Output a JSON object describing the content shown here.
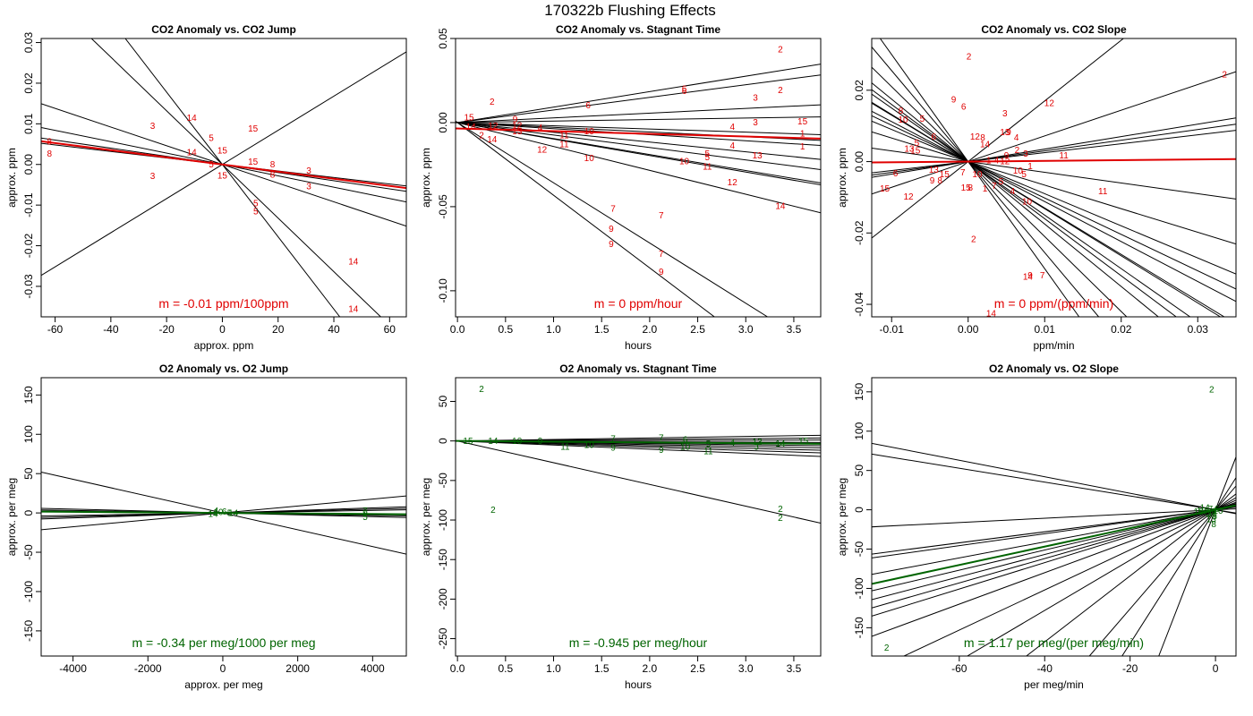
{
  "figure": {
    "title": "170322b   Flushing Effects"
  },
  "colors": {
    "co2": "#e00000",
    "o2": "#006400",
    "line": "#000000",
    "frame": "#000000"
  },
  "chart_data": [
    {
      "id": "co2-jump",
      "type": "scatter",
      "title": "CO2 Anomaly vs. CO2 Jump",
      "xlabel": "approx. ppm",
      "ylabel": "approx. ppm",
      "xlim": [
        -65.0,
        66.0
      ],
      "ylim": [
        -0.0375,
        0.031
      ],
      "xticks": [
        -60,
        -40,
        -20,
        0,
        20,
        40,
        60
      ],
      "yticks": [
        -0.03,
        -0.02,
        -0.01,
        0.0,
        0.01,
        0.02,
        0.03
      ],
      "ytick_labels": [
        "-0.03",
        "-0.02",
        "-0.01",
        "0.00",
        "0.01",
        "0.02",
        "0.03"
      ],
      "slope_label": "m = -0.01 ppm/100ppm",
      "fit_slope": -8.79e-05,
      "series_color": "co2",
      "lines": [
        -0.00066,
        -0.00089,
        0.00042,
        -0.00014,
        -0.0001,
        -0.00023,
        -8e-05
      ],
      "points": [
        {
          "label": "8",
          "x": -62,
          "y": 0.0057
        },
        {
          "label": "8",
          "x": -62,
          "y": 0.0027
        },
        {
          "label": "3",
          "x": -25,
          "y": 0.0095
        },
        {
          "label": "3",
          "x": -25,
          "y": -0.0028
        },
        {
          "label": "14",
          "x": -11,
          "y": 0.0115
        },
        {
          "label": "14",
          "x": -11,
          "y": 0.003
        },
        {
          "label": "5",
          "x": -4,
          "y": 0.0065
        },
        {
          "label": "5",
          "x": -4,
          "y": 0.0
        },
        {
          "label": "15",
          "x": 0,
          "y": 0.0035
        },
        {
          "label": "15",
          "x": 0,
          "y": -0.0027
        },
        {
          "label": "15",
          "x": 11,
          "y": 0.0089
        },
        {
          "label": "15",
          "x": 11,
          "y": 0.0007
        },
        {
          "label": "5",
          "x": 12,
          "y": -0.0095
        },
        {
          "label": "5",
          "x": 12,
          "y": -0.0115
        },
        {
          "label": "8",
          "x": 18,
          "y": 0.0
        },
        {
          "label": "8",
          "x": 18,
          "y": -0.0025
        },
        {
          "label": "3",
          "x": 31,
          "y": -0.0015
        },
        {
          "label": "3",
          "x": 31,
          "y": -0.0053
        },
        {
          "label": "14",
          "x": 47,
          "y": -0.0238
        },
        {
          "label": "14",
          "x": 47,
          "y": -0.0355
        }
      ]
    },
    {
      "id": "co2-time",
      "type": "scatter",
      "title": "CO2 Anomaly vs. Stagnant Time",
      "xlabel": "hours",
      "ylabel": "approx. ppm",
      "xlim": [
        -0.02,
        3.78
      ],
      "ylim": [
        -0.1155,
        0.05
      ],
      "xticks": [
        0.0,
        0.5,
        1.0,
        1.5,
        2.0,
        2.5,
        3.0,
        3.5
      ],
      "xtick_labels": [
        "0.0",
        "0.5",
        "1.0",
        "1.5",
        "2.0",
        "2.5",
        "3.0",
        "3.5"
      ],
      "yticks": [
        -0.1,
        -0.05,
        0.0,
        0.05
      ],
      "ytick_labels": [
        "-0.10",
        "-0.05",
        "0.00",
        "0.05"
      ],
      "slope_label": "m = 0 ppm/hour",
      "fit_slope": -0.0016,
      "fit_intercept": -0.0035,
      "series_color": "co2",
      "lines": [
        0.0092,
        0.0075,
        0.0028,
        0.0009,
        -0.0019,
        -0.0028,
        -0.0036,
        -0.0058,
        -0.0074,
        -0.0095,
        -0.0098,
        -0.0142,
        -0.0358,
        -0.0432
      ],
      "points": [
        {
          "label": "15",
          "x": 0.12,
          "y": 0.0032
        },
        {
          "label": "14",
          "x": 0.14,
          "y": -0.0025
        },
        {
          "label": "2",
          "x": 0.36,
          "y": 0.0125
        },
        {
          "label": "2",
          "x": 0.25,
          "y": -0.0075
        },
        {
          "label": "14",
          "x": 0.36,
          "y": -0.01
        },
        {
          "label": "12",
          "x": 0.37,
          "y": -0.002
        },
        {
          "label": "9",
          "x": 0.6,
          "y": 0.002
        },
        {
          "label": "12",
          "x": 0.62,
          "y": -0.0015
        },
        {
          "label": "13",
          "x": 0.62,
          "y": -0.005
        },
        {
          "label": "4",
          "x": 0.86,
          "y": -0.003
        },
        {
          "label": "12",
          "x": 0.88,
          "y": -0.016
        },
        {
          "label": "11",
          "x": 1.11,
          "y": -0.0075
        },
        {
          "label": "11",
          "x": 1.11,
          "y": -0.0128
        },
        {
          "label": "6",
          "x": 1.36,
          "y": 0.0103
        },
        {
          "label": "10",
          "x": 1.37,
          "y": -0.005
        },
        {
          "label": "10",
          "x": 1.37,
          "y": -0.021
        },
        {
          "label": "7",
          "x": 1.62,
          "y": -0.051
        },
        {
          "label": "9",
          "x": 1.6,
          "y": -0.063
        },
        {
          "label": "9",
          "x": 1.6,
          "y": -0.072
        },
        {
          "label": "7",
          "x": 2.12,
          "y": -0.055
        },
        {
          "label": "7",
          "x": 2.12,
          "y": -0.078
        },
        {
          "label": "9",
          "x": 2.12,
          "y": -0.0885
        },
        {
          "label": "10",
          "x": 2.36,
          "y": -0.023
        },
        {
          "label": "6",
          "x": 2.36,
          "y": 0.0188
        },
        {
          "label": "6",
          "x": 2.36,
          "y": 0.0203
        },
        {
          "label": "5",
          "x": 2.6,
          "y": -0.0185
        },
        {
          "label": "5",
          "x": 2.6,
          "y": -0.0205
        },
        {
          "label": "11",
          "x": 2.6,
          "y": -0.026
        },
        {
          "label": "12",
          "x": 2.86,
          "y": -0.0355
        },
        {
          "label": "4",
          "x": 2.86,
          "y": -0.0025
        },
        {
          "label": "4",
          "x": 2.86,
          "y": -0.0135
        },
        {
          "label": "3",
          "x": 3.1,
          "y": 0.0148
        },
        {
          "label": "3",
          "x": 3.1,
          "y": 0.0002
        },
        {
          "label": "13",
          "x": 3.12,
          "y": -0.0195
        },
        {
          "label": "2",
          "x": 3.36,
          "y": 0.0435
        },
        {
          "label": "2",
          "x": 3.36,
          "y": 0.0195
        },
        {
          "label": "14",
          "x": 3.36,
          "y": -0.0495
        },
        {
          "label": "15",
          "x": 3.59,
          "y": 0.0008
        },
        {
          "label": "1",
          "x": 3.59,
          "y": -0.0065
        },
        {
          "label": "1",
          "x": 3.59,
          "y": -0.014
        }
      ]
    },
    {
      "id": "co2-slope",
      "type": "scatter",
      "title": "CO2 Anomaly vs. CO2 Slope",
      "xlabel": "ppm/min",
      "ylabel": "approx. ppm",
      "xlim": [
        -0.0126,
        0.035
      ],
      "ylim": [
        -0.0435,
        0.0345
      ],
      "xticks": [
        -0.01,
        0.0,
        0.01,
        0.02,
        0.03
      ],
      "xtick_labels": [
        "-0.01",
        "0.00",
        "0.01",
        "0.02",
        "0.03"
      ],
      "yticks": [
        -0.04,
        -0.02,
        0.0,
        0.02
      ],
      "ytick_labels": [
        "-0.04",
        "-0.02",
        "0.00",
        "0.02"
      ],
      "slope_label": "m = 0 ppm/(ppm/min)",
      "fit_slope": 0.02,
      "fit_intercept": 0.0,
      "series_color": "co2",
      "lines": [
        -3.0,
        -1.75,
        -1.5,
        -1.3,
        -1.02,
        -0.66,
        1.7,
        0.72,
        0.35,
        0.3,
        0.25,
        -0.3,
        -0.9,
        -1.12,
        -1.32,
        -1.6,
        -2.1,
        -2.55
      ],
      "points": [
        {
          "label": "2",
          "x": 0.0001,
          "y": 0.0295
        },
        {
          "label": "2",
          "x": 0.0335,
          "y": 0.0245
        },
        {
          "label": "9",
          "x": -0.0019,
          "y": 0.0175
        },
        {
          "label": "6",
          "x": -0.0006,
          "y": 0.0155
        },
        {
          "label": "3",
          "x": 0.0048,
          "y": 0.0135
        },
        {
          "label": "12",
          "x": 0.0106,
          "y": 0.0165
        },
        {
          "label": "8",
          "x": -0.0088,
          "y": 0.0143
        },
        {
          "label": "10",
          "x": -0.0085,
          "y": 0.0118
        },
        {
          "label": "5",
          "x": -0.006,
          "y": 0.012
        },
        {
          "label": "6",
          "x": -0.0045,
          "y": 0.007
        },
        {
          "label": "12",
          "x": 0.0009,
          "y": 0.007
        },
        {
          "label": "8",
          "x": 0.0019,
          "y": 0.0068
        },
        {
          "label": "13",
          "x": 0.0048,
          "y": 0.0083
        },
        {
          "label": "9",
          "x": 0.0053,
          "y": 0.0083
        },
        {
          "label": "4",
          "x": 0.0063,
          "y": 0.0068
        },
        {
          "label": "14",
          "x": 0.0022,
          "y": 0.0049
        },
        {
          "label": "5",
          "x": -0.0067,
          "y": 0.0053
        },
        {
          "label": "13",
          "x": -0.0077,
          "y": 0.0037
        },
        {
          "label": "15",
          "x": -0.0069,
          "y": 0.0032
        },
        {
          "label": "2",
          "x": 0.0064,
          "y": 0.0033
        },
        {
          "label": "11",
          "x": 0.0125,
          "y": 0.0018
        },
        {
          "label": "3",
          "x": 0.0075,
          "y": 0.0023
        },
        {
          "label": "9",
          "x": 0.005,
          "y": 0.0018
        },
        {
          "label": "12",
          "x": 0.0048,
          "y": 0.0002
        },
        {
          "label": "4",
          "x": 0.0037,
          "y": 0.0004
        },
        {
          "label": "1",
          "x": 0.0081,
          "y": -0.0012
        },
        {
          "label": "1",
          "x": 0.0027,
          "y": 0.0004
        },
        {
          "label": "6",
          "x": -0.0095,
          "y": -0.0033
        },
        {
          "label": "13",
          "x": -0.0045,
          "y": -0.0022
        },
        {
          "label": "15",
          "x": -0.0031,
          "y": -0.0035
        },
        {
          "label": "9",
          "x": -0.0047,
          "y": -0.0052
        },
        {
          "label": "8",
          "x": -0.0037,
          "y": -0.0052
        },
        {
          "label": "7",
          "x": -0.0007,
          "y": -0.003
        },
        {
          "label": "10",
          "x": 0.0012,
          "y": -0.0035
        },
        {
          "label": "10",
          "x": 0.0065,
          "y": -0.0025
        },
        {
          "label": "5",
          "x": 0.0073,
          "y": -0.0035
        },
        {
          "label": "15",
          "x": -0.0109,
          "y": -0.0075
        },
        {
          "label": "12",
          "x": -0.0078,
          "y": -0.0098
        },
        {
          "label": "15",
          "x": -0.0003,
          "y": -0.0072
        },
        {
          "label": "8",
          "x": 0.0003,
          "y": -0.0072
        },
        {
          "label": "1",
          "x": 0.0022,
          "y": -0.0075
        },
        {
          "label": "7",
          "x": 0.0034,
          "y": -0.0068
        },
        {
          "label": "5",
          "x": 0.0043,
          "y": -0.0055
        },
        {
          "label": "4",
          "x": 0.0058,
          "y": -0.0082
        },
        {
          "label": "11",
          "x": 0.0176,
          "y": -0.0082
        },
        {
          "label": "10",
          "x": 0.0077,
          "y": -0.0112
        },
        {
          "label": "2",
          "x": 0.0007,
          "y": -0.0217
        },
        {
          "label": "14",
          "x": 0.0078,
          "y": -0.0322
        },
        {
          "label": "9",
          "x": 0.0081,
          "y": -0.0318
        },
        {
          "label": "7",
          "x": 0.0097,
          "y": -0.0318
        },
        {
          "label": "14",
          "x": 0.003,
          "y": -0.0425
        }
      ]
    },
    {
      "id": "o2-jump",
      "type": "scatter",
      "title": "O2 Anomaly vs. O2 Jump",
      "xlabel": "approx. per meg",
      "ylabel": "approx. per meg",
      "xlim": [
        -4850,
        4900
      ],
      "ylim": [
        -182,
        172
      ],
      "xticks": [
        -4000,
        -2000,
        0,
        2000,
        4000
      ],
      "yticks": [
        -150,
        -100,
        -50,
        0,
        50,
        100,
        150
      ],
      "slope_label": "m = -0.34 per meg/1000 per meg",
      "fit_slope": -0.00034,
      "series_color": "o2",
      "lines": [
        -0.0107,
        0.0044,
        0.0016,
        0.0012,
        -0.0012,
        -0.0008,
        -0.0005,
        0.0008
      ],
      "points": [
        {
          "label": "4",
          "x": -180,
          "y": 3
        },
        {
          "label": "14",
          "x": -260,
          "y": -1
        },
        {
          "label": "10",
          "x": -120,
          "y": 1
        },
        {
          "label": "6",
          "x": 40,
          "y": 2
        },
        {
          "label": "5",
          "x": 180,
          "y": 0
        },
        {
          "label": "14",
          "x": 280,
          "y": 0
        },
        {
          "label": "7",
          "x": 3800,
          "y": 3
        },
        {
          "label": "9",
          "x": 3800,
          "y": 0
        },
        {
          "label": "5",
          "x": 3800,
          "y": -5
        }
      ]
    },
    {
      "id": "o2-time",
      "type": "scatter",
      "title": "O2 Anomaly vs. Stagnant Time",
      "xlabel": "hours",
      "ylabel": "approx. per meg",
      "xlim": [
        -0.02,
        3.78
      ],
      "ylim": [
        -272,
        80
      ],
      "xticks": [
        0.0,
        0.5,
        1.0,
        1.5,
        2.0,
        2.5,
        3.0,
        3.5
      ],
      "xtick_labels": [
        "0.0",
        "0.5",
        "1.0",
        "1.5",
        "2.0",
        "2.5",
        "3.0",
        "3.5"
      ],
      "yticks": [
        -250,
        -200,
        -150,
        -100,
        -50,
        0,
        50
      ],
      "slope_label": "m = -0.945 per meg/hour",
      "fit_slope": -0.945,
      "series_color": "o2",
      "lines": [
        1.9,
        1.0,
        0.3,
        -0.5,
        -0.9,
        -1.6,
        -2.3,
        -3.1,
        -4.0,
        -5.2,
        -27.5
      ],
      "points": [
        {
          "label": "2",
          "x": 0.25,
          "y": 66
        },
        {
          "label": "2",
          "x": 0.37,
          "y": -87
        },
        {
          "label": "15",
          "x": 0.11,
          "y": 0
        },
        {
          "label": "14",
          "x": 0.37,
          "y": 0
        },
        {
          "label": "10",
          "x": 0.62,
          "y": 0
        },
        {
          "label": "9",
          "x": 0.86,
          "y": 0
        },
        {
          "label": "11",
          "x": 1.12,
          "y": -7
        },
        {
          "label": "10",
          "x": 1.37,
          "y": -5
        },
        {
          "label": "7",
          "x": 1.62,
          "y": 3
        },
        {
          "label": "9",
          "x": 1.62,
          "y": -8
        },
        {
          "label": "7",
          "x": 2.12,
          "y": 4
        },
        {
          "label": "9",
          "x": 2.12,
          "y": -11
        },
        {
          "label": "6",
          "x": 2.37,
          "y": 2
        },
        {
          "label": "10",
          "x": 2.37,
          "y": -7
        },
        {
          "label": "11",
          "x": 2.61,
          "y": -13
        },
        {
          "label": "5",
          "x": 2.61,
          "y": -4
        },
        {
          "label": "4",
          "x": 2.86,
          "y": -2
        },
        {
          "label": "13",
          "x": 3.12,
          "y": -1
        },
        {
          "label": "3",
          "x": 3.11,
          "y": -7
        },
        {
          "label": "2",
          "x": 3.36,
          "y": -86
        },
        {
          "label": "2",
          "x": 3.36,
          "y": -97
        },
        {
          "label": "14",
          "x": 3.36,
          "y": -3
        },
        {
          "label": "15",
          "x": 3.6,
          "y": 0
        }
      ]
    },
    {
      "id": "o2-slope",
      "type": "scatter",
      "title": "O2 Anomaly vs. O2 Slope",
      "xlabel": "per meg/min",
      "ylabel": "approx. per meg",
      "xlim": [
        -80.5,
        4.8
      ],
      "ylim": [
        -186,
        168
      ],
      "xticks": [
        -60,
        -40,
        -20,
        0
      ],
      "yticks": [
        -150,
        -100,
        -50,
        0,
        50,
        100,
        150
      ],
      "slope_label": "m = 1.17 per meg/(per meg/min)",
      "fit_slope": 1.17,
      "series_color": "o2",
      "lines": [
        -1.05,
        -0.88,
        0.27,
        0.7,
        0.76,
        1.02,
        1.28,
        1.42,
        1.55,
        1.68,
        2.0,
        2.55,
        3.2,
        4.2,
        6.3,
        8.5,
        14.0
      ],
      "points": [
        {
          "label": "2",
          "x": -0.9,
          "y": 153
        },
        {
          "label": "2",
          "x": -77,
          "y": -175
        },
        {
          "label": "15",
          "x": -4,
          "y": -2
        },
        {
          "label": "14",
          "x": -2.5,
          "y": 3
        },
        {
          "label": "5",
          "x": -1.8,
          "y": -4
        },
        {
          "label": "7",
          "x": -1.2,
          "y": 1
        },
        {
          "label": "9",
          "x": -0.5,
          "y": -2
        },
        {
          "label": "3",
          "x": -0.2,
          "y": -8
        },
        {
          "label": "6",
          "x": 0.3,
          "y": 1
        },
        {
          "label": "10",
          "x": 0.6,
          "y": -1
        },
        {
          "label": "12",
          "x": -3.3,
          "y": -1
        },
        {
          "label": "13",
          "x": -1.0,
          "y": -12
        },
        {
          "label": "8",
          "x": -0.4,
          "y": -18
        },
        {
          "label": "11",
          "x": -0.7,
          "y": -4
        }
      ]
    }
  ]
}
